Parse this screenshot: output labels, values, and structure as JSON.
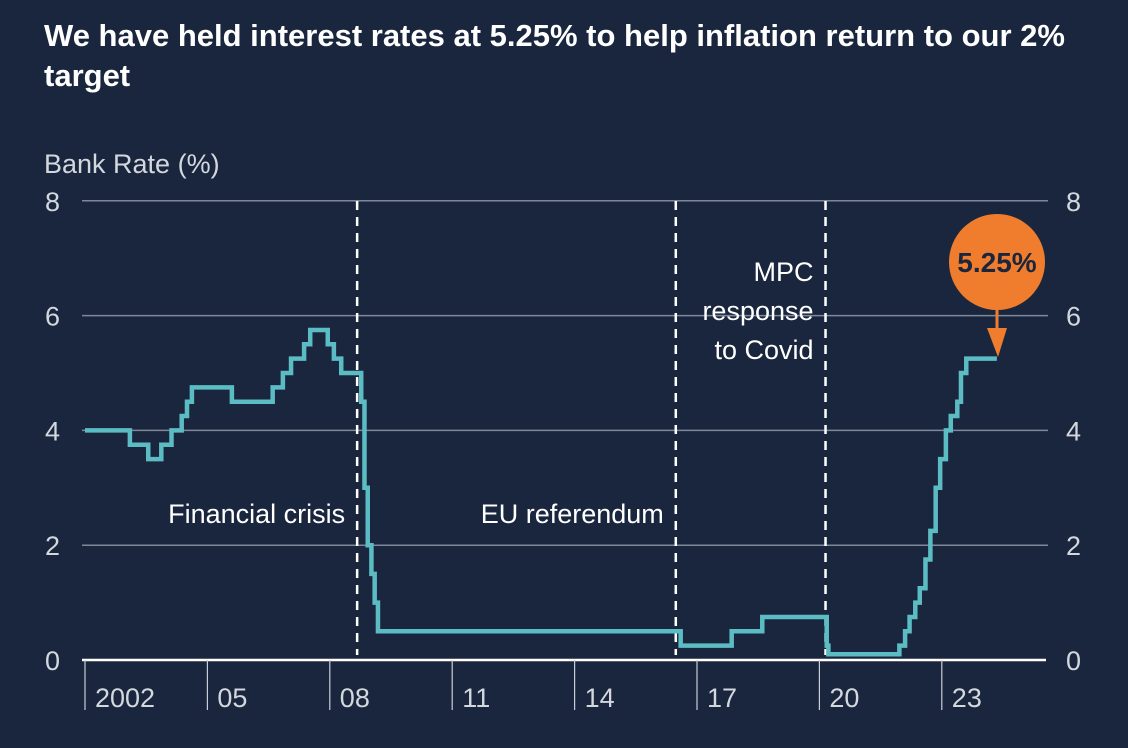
{
  "chart_data": {
    "type": "line",
    "step": true,
    "title": "We have held interest rates at 5.25% to help inflation return to our 2% target",
    "ylabel": "Bank Rate (%)",
    "xlabel": "",
    "ylim": [
      0,
      8
    ],
    "xlim": [
      2002,
      2025.3
    ],
    "yticks": [
      "0",
      "2",
      "4",
      "6",
      "8"
    ],
    "xticks": [
      {
        "year": 2002,
        "label": "2002"
      },
      {
        "year": 2005,
        "label": "05"
      },
      {
        "year": 2008,
        "label": "08"
      },
      {
        "year": 2011,
        "label": "11"
      },
      {
        "year": 2014,
        "label": "14"
      },
      {
        "year": 2017,
        "label": "17"
      },
      {
        "year": 2020,
        "label": "20"
      },
      {
        "year": 2023,
        "label": "23"
      }
    ],
    "grid": true,
    "series": [
      {
        "name": "Bank Rate",
        "color": "#5bbcc3",
        "x": [
          2002.0,
          2003.1,
          2003.55,
          2003.87,
          2004.12,
          2004.37,
          2004.5,
          2004.62,
          2005.6,
          2006.6,
          2006.85,
          2007.05,
          2007.37,
          2007.52,
          2007.95,
          2008.1,
          2008.28,
          2008.77,
          2008.85,
          2008.93,
          2009.02,
          2009.1,
          2009.18,
          2016.6,
          2017.85,
          2018.6,
          2020.18,
          2020.22,
          2021.96,
          2022.1,
          2022.21,
          2022.35,
          2022.46,
          2022.6,
          2022.72,
          2022.85,
          2022.96,
          2023.1,
          2023.22,
          2023.38,
          2023.47,
          2023.6,
          2024.35
        ],
        "y": [
          4.0,
          3.75,
          3.5,
          3.75,
          4.0,
          4.25,
          4.5,
          4.75,
          4.5,
          4.75,
          5.0,
          5.25,
          5.5,
          5.75,
          5.5,
          5.25,
          5.0,
          4.5,
          3.0,
          2.0,
          1.5,
          1.0,
          0.5,
          0.25,
          0.5,
          0.75,
          0.25,
          0.1,
          0.25,
          0.5,
          0.75,
          1.0,
          1.25,
          1.75,
          2.25,
          3.0,
          3.5,
          4.0,
          4.25,
          4.5,
          5.0,
          5.25,
          5.25
        ]
      }
    ],
    "events": [
      {
        "year": 2008.67,
        "label": [
          "Financial crisis"
        ]
      },
      {
        "year": 2016.48,
        "label": [
          "EU referendum"
        ]
      },
      {
        "year": 2020.15,
        "label": [
          "MPC",
          "response",
          "to Covid"
        ]
      }
    ],
    "callout": {
      "label": "5.25%",
      "value": 5.25,
      "color": "#ef7d2d"
    }
  }
}
